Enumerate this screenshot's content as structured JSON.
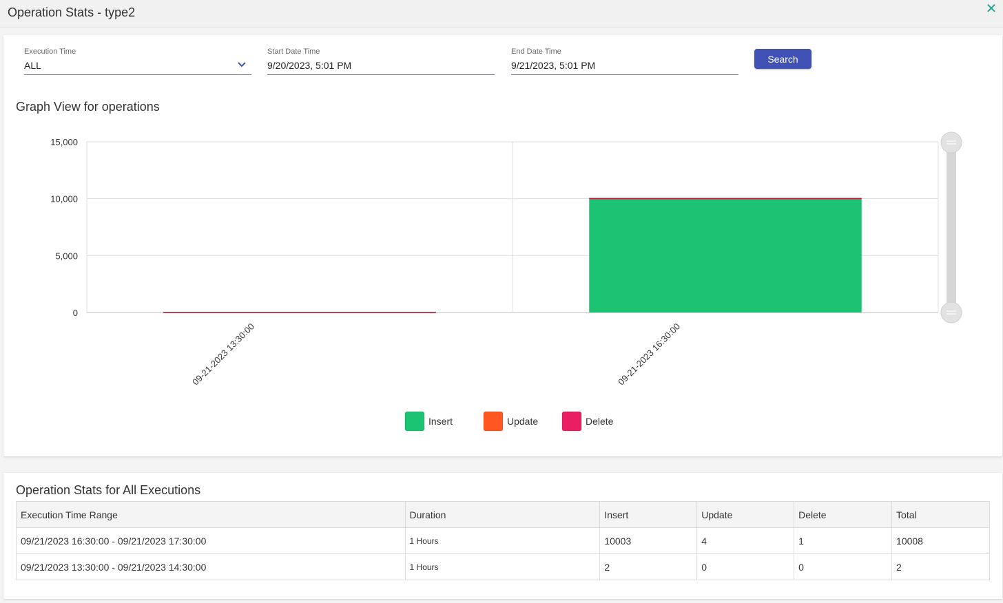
{
  "window": {
    "title": "Operation Stats - type2",
    "close_icon": "close-icon"
  },
  "filters": {
    "execution_time": {
      "label": "Execution Time",
      "value": "ALL"
    },
    "start_date_time": {
      "label": "Start Date Time",
      "value": "9/20/2023, 5:01 PM"
    },
    "end_date_time": {
      "label": "End Date Time",
      "value": "9/21/2023, 5:01 PM"
    },
    "search_label": "Search"
  },
  "graph_title": "Graph View for operations",
  "chart_data": {
    "type": "bar",
    "stacked": true,
    "categories": [
      "09-21-2023 13:30:00",
      "09-21-2023 16:30:00"
    ],
    "series": [
      {
        "name": "Insert",
        "color": "#1bc373",
        "values": [
          2,
          10003
        ]
      },
      {
        "name": "Update",
        "color": "#ff5722",
        "values": [
          0,
          4
        ]
      },
      {
        "name": "Delete",
        "color": "#e91e63",
        "values": [
          0,
          1
        ]
      }
    ],
    "y_ticks": [
      "15,000",
      "10,000",
      "5,000",
      "0"
    ],
    "ylim": [
      0,
      15000
    ],
    "grid": true,
    "legend_position": "bottom"
  },
  "table": {
    "title": "Operation Stats for All Executions",
    "columns": [
      "Execution Time Range",
      "Duration",
      "Insert",
      "Update",
      "Delete",
      "Total"
    ],
    "rows": [
      [
        "09/21/2023 16:30:00 - 09/21/2023 17:30:00",
        "1 Hours",
        "10003",
        "4",
        "1",
        "10008"
      ],
      [
        "09/21/2023 13:30:00 - 09/21/2023 14:30:00",
        "1 Hours",
        "2",
        "0",
        "0",
        "2"
      ]
    ]
  }
}
